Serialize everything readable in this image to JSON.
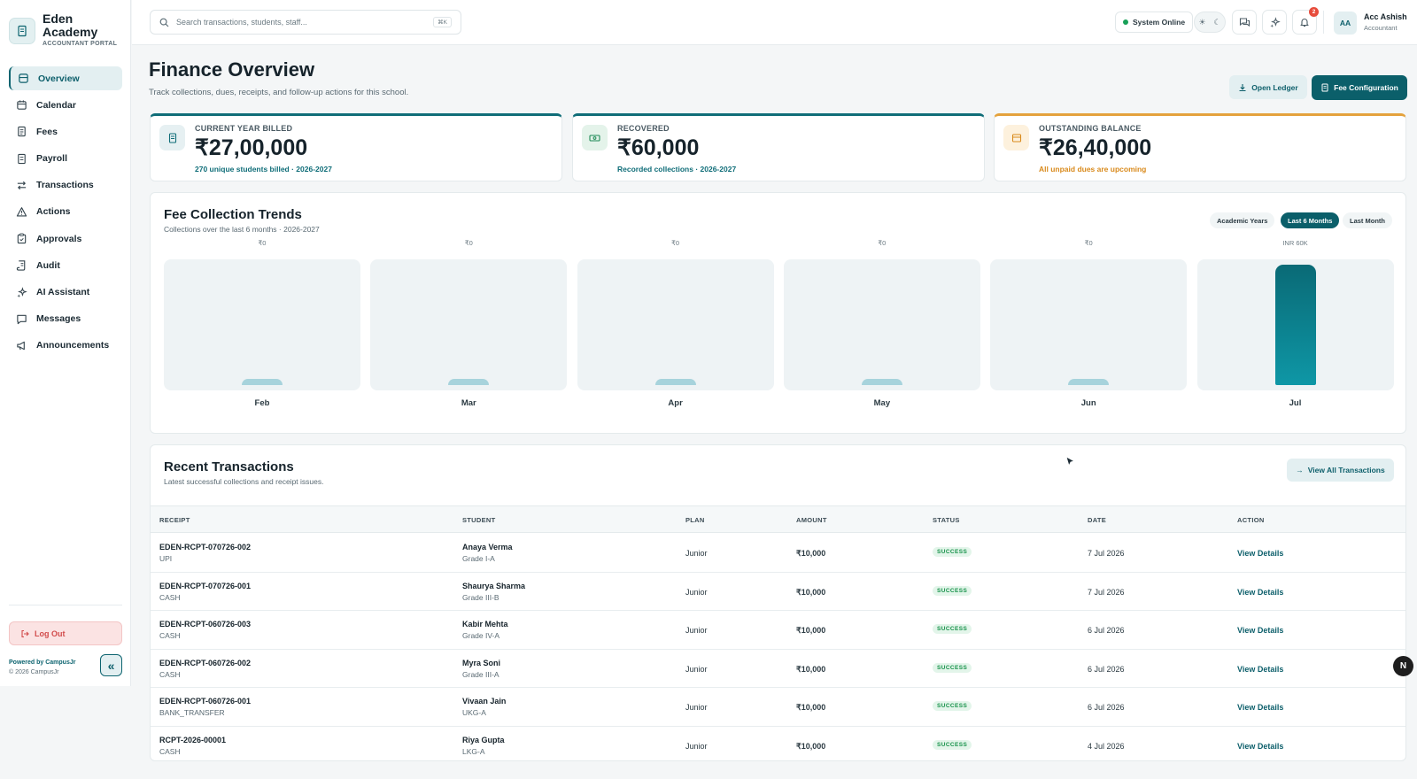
{
  "brand": {
    "name": "Eden Academy",
    "portal": "ACCOUNTANT PORTAL"
  },
  "sidebar": {
    "items": [
      {
        "label": "Overview",
        "icon": "overview-icon",
        "active": true
      },
      {
        "label": "Calendar",
        "icon": "calendar-icon"
      },
      {
        "label": "Fees",
        "icon": "fees-icon"
      },
      {
        "label": "Payroll",
        "icon": "payroll-icon"
      },
      {
        "label": "Transactions",
        "icon": "transactions-icon"
      },
      {
        "label": "Actions",
        "icon": "warning-icon"
      },
      {
        "label": "Approvals",
        "icon": "clipboard-icon"
      },
      {
        "label": "Audit",
        "icon": "scroll-icon"
      },
      {
        "label": "AI Assistant",
        "icon": "sparkle-icon"
      },
      {
        "label": "Messages",
        "icon": "message-icon"
      },
      {
        "label": "Announcements",
        "icon": "megaphone-icon"
      }
    ],
    "logout": "Log Out",
    "powered_by": "Powered by CampusJr",
    "copyright": "© 2026 CampusJr"
  },
  "topbar": {
    "search_placeholder": "Search transactions, students, staff...",
    "shortcut": "⌘K",
    "system_status": "System Online",
    "notification_count": "2",
    "user_initials": "AA",
    "user_name": "Acc Ashish",
    "user_role": "Accountant"
  },
  "header": {
    "title": "Finance Overview",
    "subtitle": "Track collections, dues, receipts, and follow-up actions for this school.",
    "open_ledger": "Open Ledger",
    "fee_config": "Fee Configuration"
  },
  "stats": [
    {
      "label": "CURRENT YEAR BILLED",
      "value": "₹27,00,000",
      "note": "270 unique students billed · 2026-2027",
      "accent": "#0f6d78"
    },
    {
      "label": "RECOVERED",
      "value": "₹60,000",
      "note": "Recorded collections · 2026-2027",
      "accent": "#0f6d78"
    },
    {
      "label": "OUTSTANDING BALANCE",
      "value": "₹26,40,000",
      "note": "All unpaid dues are upcoming",
      "accent": "#e4a23c"
    }
  ],
  "trends": {
    "title": "Fee Collection Trends",
    "subtitle": "Collections over the last 6 months · 2026-2027",
    "filters": [
      "Academic Years",
      "Last 6 Months",
      "Last Month"
    ],
    "active_filter": "Last 6 Months"
  },
  "chart_data": {
    "type": "bar",
    "categories": [
      "Feb",
      "Mar",
      "Apr",
      "May",
      "Jun",
      "Jul"
    ],
    "value_labels": [
      "₹0",
      "₹0",
      "₹0",
      "₹0",
      "₹0",
      "INR 60K"
    ],
    "values": [
      0,
      0,
      0,
      0,
      0,
      60000
    ],
    "ylim": [
      0,
      60000
    ]
  },
  "transactions": {
    "title": "Recent Transactions",
    "subtitle": "Latest successful collections and receipt issues.",
    "view_all": "View All Transactions",
    "columns": [
      "RECEIPT",
      "STUDENT",
      "PLAN",
      "AMOUNT",
      "STATUS",
      "DATE",
      "ACTION"
    ],
    "rows": [
      {
        "receipt": "EDEN-RCPT-070726-002",
        "method": "UPI",
        "student": "Anaya Verma",
        "grade": "Grade I-A",
        "plan": "Junior",
        "amount": "₹10,000",
        "status": "SUCCESS",
        "date": "7 Jul 2026",
        "action": "View Details"
      },
      {
        "receipt": "EDEN-RCPT-070726-001",
        "method": "CASH",
        "student": "Shaurya Sharma",
        "grade": "Grade III-B",
        "plan": "Junior",
        "amount": "₹10,000",
        "status": "SUCCESS",
        "date": "7 Jul 2026",
        "action": "View Details"
      },
      {
        "receipt": "EDEN-RCPT-060726-003",
        "method": "CASH",
        "student": "Kabir Mehta",
        "grade": "Grade IV-A",
        "plan": "Junior",
        "amount": "₹10,000",
        "status": "SUCCESS",
        "date": "6 Jul 2026",
        "action": "View Details"
      },
      {
        "receipt": "EDEN-RCPT-060726-002",
        "method": "CASH",
        "student": "Myra Soni",
        "grade": "Grade III-A",
        "plan": "Junior",
        "amount": "₹10,000",
        "status": "SUCCESS",
        "date": "6 Jul 2026",
        "action": "View Details"
      },
      {
        "receipt": "EDEN-RCPT-060726-001",
        "method": "BANK_TRANSFER",
        "student": "Vivaan Jain",
        "grade": "UKG-A",
        "plan": "Junior",
        "amount": "₹10,000",
        "status": "SUCCESS",
        "date": "6 Jul 2026",
        "action": "View Details"
      },
      {
        "receipt": "RCPT-2026-00001",
        "method": "CASH",
        "student": "Riya Gupta",
        "grade": "LKG-A",
        "plan": "Junior",
        "amount": "₹10,000",
        "status": "SUCCESS",
        "date": "4 Jul 2026",
        "action": "View Details"
      }
    ]
  },
  "fab_label": "N"
}
